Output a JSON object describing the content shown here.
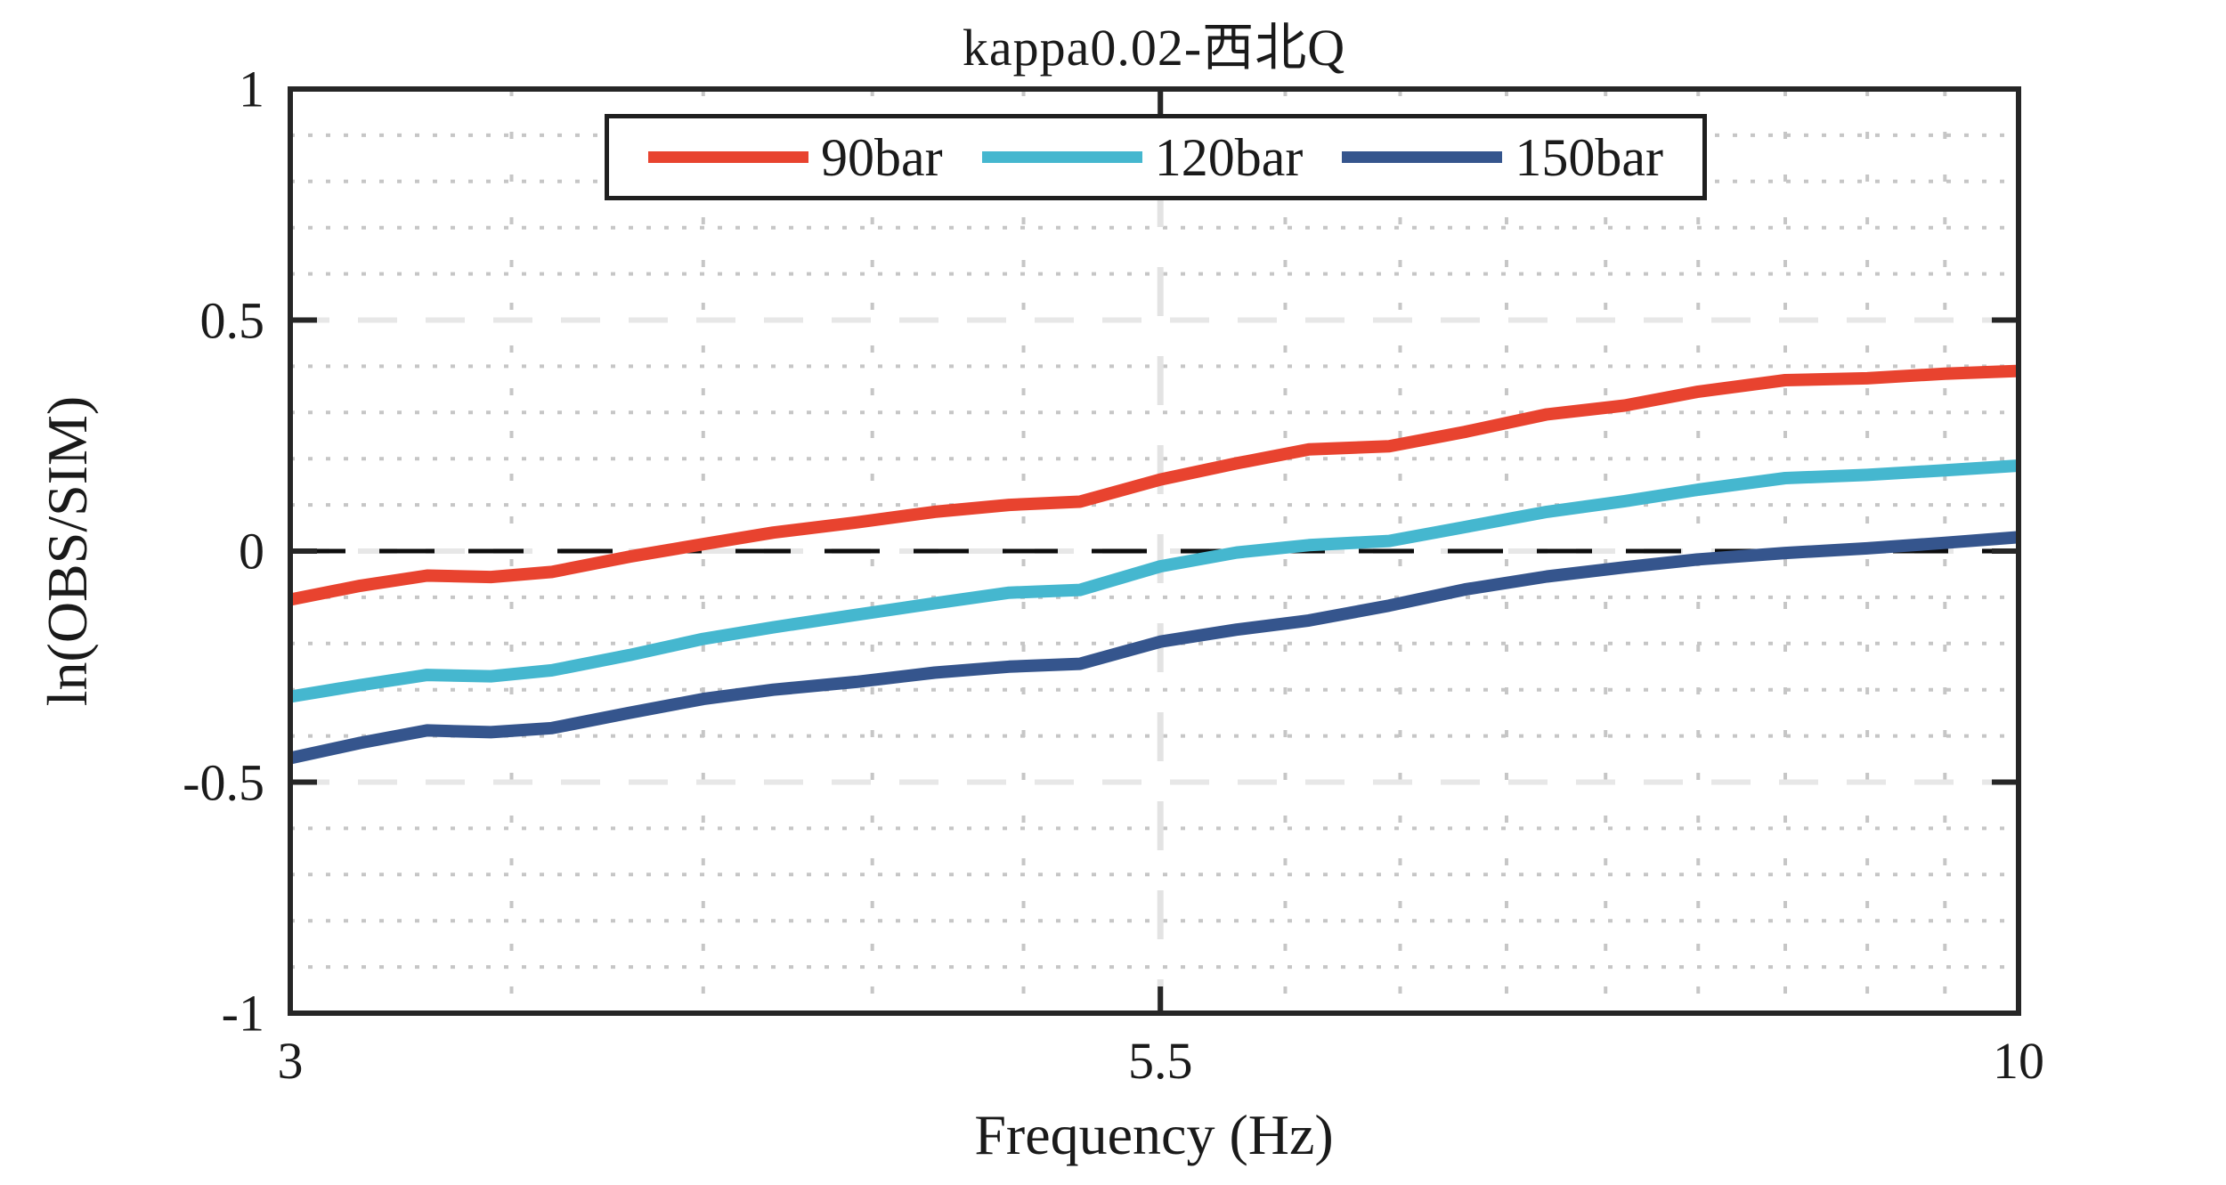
{
  "chart_data": {
    "type": "line",
    "title": "kappa0.02-西北Q",
    "xlabel": "Frequency (Hz)",
    "ylabel": "ln(OBS/SIM)",
    "x_scale": "log",
    "xlim": [
      3,
      10
    ],
    "ylim": [
      -1,
      1
    ],
    "grid": "on",
    "legend_position": "top-center-horizontal",
    "xticks": [
      {
        "value": 3,
        "label": "3"
      },
      {
        "value": 5.5,
        "label": "5.5"
      },
      {
        "value": 10,
        "label": "10"
      }
    ],
    "yticks": [
      {
        "value": 1,
        "label": "1"
      },
      {
        "value": 0.5,
        "label": "0.5"
      },
      {
        "value": 0,
        "label": "0"
      },
      {
        "value": -0.5,
        "label": "-0.5"
      },
      {
        "value": -1,
        "label": "-1"
      }
    ],
    "minor_x_gridlines": [
      3.5,
      4,
      4.5,
      5,
      6,
      6.5,
      7,
      7.5,
      8,
      8.5,
      9,
      9.5
    ],
    "major_x_gridlines": [
      5.5
    ],
    "major_y_gridlines": [
      0.5,
      0,
      -0.5
    ],
    "minor_y_gridlines": [
      0.9,
      0.8,
      0.7,
      0.6,
      0.4,
      0.3,
      0.2,
      0.1,
      -0.1,
      -0.2,
      -0.3,
      -0.4,
      -0.6,
      -0.7,
      -0.8,
      -0.9
    ],
    "zero_reference_line": {
      "y": 0,
      "style": "dashed",
      "color": "#0d0d0d"
    },
    "x": [
      3.0,
      3.15,
      3.3,
      3.45,
      3.6,
      3.8,
      4.0,
      4.2,
      4.45,
      4.7,
      4.95,
      5.2,
      5.5,
      5.8,
      6.1,
      6.45,
      6.8,
      7.2,
      7.6,
      8.0,
      8.5,
      9.0,
      9.5,
      10.0
    ],
    "series": [
      {
        "name": "90bar",
        "color": "#E8432F",
        "values": [
          -0.105,
          -0.075,
          -0.053,
          -0.056,
          -0.045,
          -0.012,
          0.015,
          0.04,
          0.062,
          0.085,
          0.1,
          0.107,
          0.155,
          0.19,
          0.22,
          0.227,
          0.258,
          0.296,
          0.315,
          0.345,
          0.37,
          0.374,
          0.384,
          0.39
        ]
      },
      {
        "name": "120bar",
        "color": "#45B7CF",
        "values": [
          -0.315,
          -0.29,
          -0.268,
          -0.271,
          -0.258,
          -0.225,
          -0.19,
          -0.165,
          -0.138,
          -0.113,
          -0.09,
          -0.084,
          -0.033,
          -0.003,
          0.013,
          0.022,
          0.052,
          0.085,
          0.108,
          0.133,
          0.158,
          0.165,
          0.175,
          0.185
        ]
      },
      {
        "name": "150bar",
        "color": "#35558D",
        "values": [
          -0.448,
          -0.415,
          -0.388,
          -0.392,
          -0.383,
          -0.35,
          -0.32,
          -0.3,
          -0.283,
          -0.263,
          -0.25,
          -0.244,
          -0.196,
          -0.17,
          -0.15,
          -0.118,
          -0.083,
          -0.055,
          -0.035,
          -0.018,
          -0.004,
          0.006,
          0.018,
          0.03
        ]
      }
    ]
  }
}
